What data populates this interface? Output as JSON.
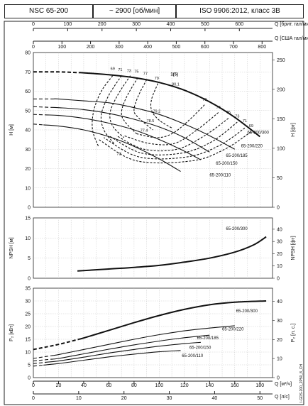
{
  "header": {
    "model": "NSC 65-200",
    "speed": "~ 2900 [об/мин]",
    "standard": "ISO 9906:2012, класс 3В"
  },
  "doc_code": "I-GDS-200_2P50_8_CH",
  "chart_data": [
    {
      "id": "head",
      "type": "line",
      "ylabel": "H [м]",
      "ylabel2": "H [фт]",
      "xlim": [
        0,
        190
      ],
      "ylim": [
        0,
        80
      ],
      "ylim2": [
        0,
        262.467
      ],
      "yticks": [
        0,
        10,
        20,
        30,
        40,
        50,
        60,
        70,
        80
      ],
      "yticks2": [
        0,
        50,
        100,
        150,
        200,
        250
      ],
      "grid": true,
      "series": [
        {
          "name": "65-200/300",
          "label_at": [
            170,
            38
          ],
          "bold": true,
          "dash_until": 36,
          "points": [
            [
              0,
              70
            ],
            [
              20,
              70
            ],
            [
              40,
              69.5
            ],
            [
              60,
              68.5
            ],
            [
              80,
              67
            ],
            [
              100,
              64.5
            ],
            [
              120,
              60.5
            ],
            [
              140,
              54.5
            ],
            [
              160,
              46.5
            ],
            [
              180,
              36.5
            ]
          ]
        },
        {
          "name": "65-200/220",
          "label_at": [
            165,
            31
          ],
          "dash_until": 16,
          "points": [
            [
              0,
              56
            ],
            [
              20,
              56
            ],
            [
              40,
              55
            ],
            [
              60,
              54
            ],
            [
              80,
              51.5
            ],
            [
              100,
              48
            ],
            [
              120,
              43
            ],
            [
              140,
              37
            ],
            [
              160,
              30
            ]
          ]
        },
        {
          "name": "65-200/185",
          "label_at": [
            153,
            26
          ],
          "dash_until": 14,
          "points": [
            [
              0,
              52
            ],
            [
              20,
              51.5
            ],
            [
              40,
              50.5
            ],
            [
              60,
              48.5
            ],
            [
              80,
              45.5
            ],
            [
              100,
              41.5
            ],
            [
              120,
              36
            ],
            [
              140,
              28.5
            ]
          ]
        },
        {
          "name": "65-200/150",
          "label_at": [
            145,
            22
          ],
          "dash_until": 11,
          "points": [
            [
              0,
              48
            ],
            [
              20,
              47.5
            ],
            [
              40,
              46
            ],
            [
              60,
              43.5
            ],
            [
              80,
              40
            ],
            [
              100,
              35
            ],
            [
              120,
              29
            ],
            [
              133,
              24.5
            ]
          ]
        },
        {
          "name": "65-200/110",
          "label_at": [
            140,
            16
          ],
          "dash_until": 8,
          "points": [
            [
              0,
              43
            ],
            [
              20,
              42
            ],
            [
              40,
              40
            ],
            [
              60,
              36.5
            ],
            [
              80,
              31.5
            ],
            [
              100,
              25
            ],
            [
              117,
              18.5
            ]
          ]
        }
      ],
      "efficiency_labels": [
        {
          "t": "69",
          "x": 63,
          "y": 71
        },
        {
          "t": "71",
          "x": 69,
          "y": 70.5
        },
        {
          "t": "73",
          "x": 76,
          "y": 70
        },
        {
          "t": "75",
          "x": 82,
          "y": 69.5
        },
        {
          "t": "77",
          "x": 89,
          "y": 68.5
        },
        {
          "t": "79",
          "x": 98,
          "y": 66
        },
        {
          "t": "80.1",
          "x": 113,
          "y": 63
        },
        {
          "t": "79",
          "x": 136,
          "y": 55
        },
        {
          "t": "77",
          "x": 147,
          "y": 51
        },
        {
          "t": "75",
          "x": 155,
          "y": 48.5
        },
        {
          "t": "73",
          "x": 162,
          "y": 46.5
        },
        {
          "t": "71",
          "x": 168,
          "y": 44
        },
        {
          "t": "69",
          "x": 173,
          "y": 41.5
        },
        {
          "t": "79.2",
          "x": 98,
          "y": 49
        },
        {
          "t": "78.5",
          "x": 93,
          "y": 44
        },
        {
          "t": "77.4",
          "x": 88,
          "y": 39
        },
        {
          "t": "73",
          "x": 68,
          "y": 27
        }
      ],
      "efficiency_curves": [
        [
          [
            63,
            68
          ],
          [
            54,
            60
          ],
          [
            48,
            50
          ],
          [
            47,
            40
          ],
          [
            52,
            31
          ]
        ],
        [
          [
            70,
            68
          ],
          [
            60,
            58
          ],
          [
            54,
            48
          ],
          [
            56,
            40
          ],
          [
            64,
            33
          ]
        ],
        [
          [
            77,
            68
          ],
          [
            67,
            58
          ],
          [
            61,
            49
          ],
          [
            63,
            42
          ],
          [
            72,
            36
          ]
        ],
        [
          [
            83,
            67
          ],
          [
            74,
            57
          ],
          [
            70,
            49
          ],
          [
            73,
            44
          ],
          [
            82,
            38
          ]
        ],
        [
          [
            90,
            66
          ],
          [
            83,
            57
          ],
          [
            80,
            50
          ],
          [
            84,
            46
          ],
          [
            95,
            40
          ]
        ],
        [
          [
            99,
            64
          ],
          [
            94,
            56
          ],
          [
            94,
            50
          ],
          [
            100,
            45
          ],
          [
            110,
            41
          ]
        ],
        [
          [
            136,
            53
          ],
          [
            122,
            44
          ],
          [
            110,
            38
          ],
          [
            98,
            36
          ],
          [
            82,
            38
          ]
        ],
        [
          [
            147,
            49
          ],
          [
            130,
            40
          ],
          [
            112,
            33
          ],
          [
            92,
            33
          ],
          [
            72,
            37
          ]
        ],
        [
          [
            155,
            46
          ],
          [
            136,
            37
          ],
          [
            114,
            30
          ],
          [
            88,
            30
          ],
          [
            66,
            37
          ]
        ],
        [
          [
            162,
            44
          ],
          [
            142,
            34
          ],
          [
            118,
            28
          ],
          [
            86,
            28
          ],
          [
            60,
            37
          ]
        ],
        [
          [
            168,
            41
          ],
          [
            148,
            32
          ],
          [
            122,
            26
          ],
          [
            84,
            26
          ],
          [
            56,
            36
          ]
        ],
        [
          [
            173,
            39
          ],
          [
            152,
            30
          ],
          [
            126,
            24
          ],
          [
            82,
            24
          ],
          [
            52,
            35
          ]
        ]
      ],
      "marker": {
        "t": "1(5)",
        "x": 112,
        "y": 68
      }
    },
    {
      "id": "npsh",
      "type": "line",
      "ylabel": "NPSH [м]",
      "ylabel2": "NPSH [фт]",
      "xlim": [
        0,
        190
      ],
      "ylim": [
        0,
        15
      ],
      "ylim2": [
        0,
        49.213
      ],
      "yticks": [
        0,
        5,
        10,
        15
      ],
      "yticks2": [
        0,
        10,
        20,
        30,
        40
      ],
      "grid": true,
      "series": [
        {
          "name": "65-200/300",
          "label_at": [
            153,
            12
          ],
          "bold": true,
          "points": [
            [
              35,
              1.8
            ],
            [
              60,
              2.3
            ],
            [
              80,
              2.7
            ],
            [
              100,
              3.2
            ],
            [
              120,
              4.0
            ],
            [
              140,
              5.0
            ],
            [
              160,
              6.5
            ],
            [
              175,
              8.3
            ],
            [
              185,
              10.3
            ]
          ]
        }
      ]
    },
    {
      "id": "power",
      "type": "line",
      "ylabel": "P₂ [кВт]",
      "ylabel2": "P₂ [л. с.]",
      "xlim": [
        0,
        190
      ],
      "ylim": [
        0,
        35
      ],
      "ylim2": [
        0,
        46.936
      ],
      "yticks": [
        0,
        5,
        10,
        15,
        20,
        25,
        30,
        35
      ],
      "yticks2": [
        0,
        10,
        20,
        30,
        40
      ],
      "grid": true,
      "series": [
        {
          "name": "65-200/300",
          "label_at": [
            161,
            25.5
          ],
          "bold": true,
          "dash_until": 36,
          "points": [
            [
              0,
              11
            ],
            [
              20,
              13
            ],
            [
              40,
              15.5
            ],
            [
              60,
              18.5
            ],
            [
              80,
              21.5
            ],
            [
              100,
              24.3
            ],
            [
              120,
              26.7
            ],
            [
              140,
              28.5
            ],
            [
              160,
              29.5
            ],
            [
              185,
              30
            ]
          ]
        },
        {
          "name": "65-200/220",
          "label_at": [
            150,
            18.5
          ],
          "dash_until": 16,
          "points": [
            [
              0,
              7.5
            ],
            [
              20,
              9
            ],
            [
              40,
              11
            ],
            [
              60,
              13
            ],
            [
              80,
              15
            ],
            [
              100,
              16.8
            ],
            [
              120,
              18.3
            ],
            [
              140,
              19.4
            ],
            [
              160,
              20.3
            ]
          ]
        },
        {
          "name": "65-200/185",
          "label_at": [
            130,
            15
          ],
          "dash_until": 14,
          "points": [
            [
              0,
              6.5
            ],
            [
              20,
              7.5
            ],
            [
              40,
              9.3
            ],
            [
              60,
              11.1
            ],
            [
              80,
              12.8
            ],
            [
              100,
              14.3
            ],
            [
              120,
              15.6
            ],
            [
              140,
              16.6
            ]
          ]
        },
        {
          "name": "65-200/150",
          "label_at": [
            124,
            11.2
          ],
          "dash_until": 11,
          "points": [
            [
              0,
              5.5
            ],
            [
              20,
              6.5
            ],
            [
              40,
              8
            ],
            [
              60,
              9.6
            ],
            [
              80,
              11
            ],
            [
              100,
              12.3
            ],
            [
              120,
              13.3
            ],
            [
              133,
              13.8
            ]
          ]
        },
        {
          "name": "65-200/110",
          "label_at": [
            118,
            8
          ],
          "dash_until": 8,
          "points": [
            [
              0,
              4.5
            ],
            [
              20,
              5.5
            ],
            [
              40,
              6.8
            ],
            [
              60,
              8.1
            ],
            [
              80,
              9.2
            ],
            [
              100,
              10.1
            ],
            [
              117,
              10.6
            ]
          ]
        }
      ]
    }
  ],
  "axes": {
    "x_top1_label": "Q [брит. гал/мин]",
    "x_top1_ticks": [
      "0",
      "100",
      "200",
      "300",
      "400",
      "500",
      "600"
    ],
    "x_top2_label": "Q [США гал/мин]",
    "x_top2_ticks": [
      "0",
      "100",
      "200",
      "300",
      "400",
      "500",
      "600",
      "700",
      "800"
    ],
    "x_bottom1_label": "Q [м³/ч]",
    "x_bottom1_ticks": [
      "0",
      "20",
      "40",
      "60",
      "80",
      "100",
      "120",
      "140",
      "160",
      "180"
    ],
    "x_bottom2_label": "Q [л/с]",
    "x_bottom2_ticks": [
      "0",
      "10",
      "20",
      "30",
      "40",
      "50"
    ]
  }
}
